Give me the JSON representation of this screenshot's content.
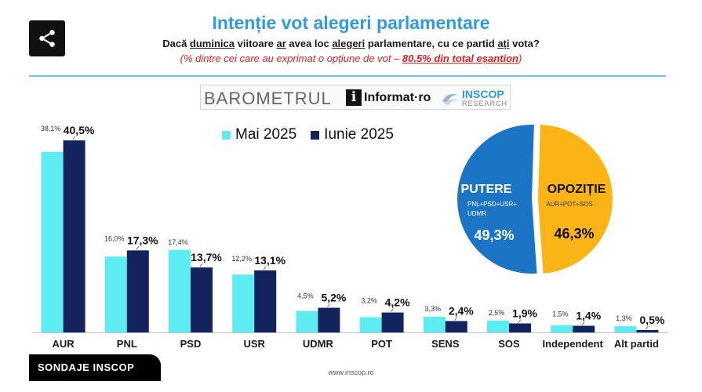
{
  "header": {
    "title": "Intenție vot alegeri parlamentare",
    "question_parts": [
      {
        "text": "Dacă ",
        "u": false
      },
      {
        "text": "duminica",
        "u": true
      },
      {
        "text": " viitoare ",
        "u": false
      },
      {
        "text": "ar",
        "u": true
      },
      {
        "text": " avea loc ",
        "u": false
      },
      {
        "text": "alegeri",
        "u": true
      },
      {
        "text": " parlamentare, cu ce partid ",
        "u": false
      },
      {
        "text": "ați",
        "u": true
      },
      {
        "text": " vota?",
        "u": false
      }
    ],
    "note_prefix": "(% dintre cei care au exprimat o opțiune de vot – ",
    "note_highlight": "80.5% din total eșantion",
    "note_suffix": ")"
  },
  "logos": {
    "barometru": "BAROMETRUL",
    "informat_i": "i",
    "informat": "Informat·ro",
    "inscop": "INSCOP",
    "research": "RESEARCH"
  },
  "legend": [
    {
      "label": "Mai 2025",
      "color": "#5cecf2"
    },
    {
      "label": "Iunie 2025",
      "color": "#13235e"
    }
  ],
  "colors": {
    "mai": "#5cecf2",
    "iunie": "#13235e",
    "putere": "#1b74c4",
    "opozitie": "#fbb416",
    "accent_blue": "#2f9ae0",
    "note_red": "#e02020"
  },
  "chart_data": [
    {
      "type": "bar",
      "categories": [
        "AUR",
        "PNL",
        "PSD",
        "USR",
        "UDMR",
        "POT",
        "SENS",
        "SOS",
        "Independent",
        "Alt partid"
      ],
      "series": [
        {
          "name": "Mai 2025",
          "values": [
            38.1,
            16.0,
            17.4,
            12.2,
            4.5,
            3.2,
            3.3,
            2.5,
            1.5,
            1.3
          ],
          "labels": [
            "38,1%",
            "16,0%",
            "17,4%",
            "12,2%",
            "4,5%",
            "3,2%",
            "3,3%",
            "2,5%",
            "1,5%",
            "1,3%"
          ]
        },
        {
          "name": "Iunie 2025",
          "values": [
            40.5,
            17.3,
            13.7,
            13.1,
            5.2,
            4.2,
            2.4,
            1.9,
            1.4,
            0.5
          ],
          "labels": [
            "40,5%",
            "17,3%",
            "13,7%",
            "13,1%",
            "5,2%",
            "4,2%",
            "2,4%",
            "1,9%",
            "1,4%",
            "0,5%"
          ]
        }
      ],
      "ylim": [
        0,
        42
      ],
      "legend_position": "top",
      "grid": false
    },
    {
      "type": "pie",
      "slices": [
        {
          "label": "PUTERE",
          "sub": "PNL+PSD+USR+UDMR",
          "sub_lines": [
            "PNL+PSD+USR+",
            "UDMR"
          ],
          "value": 49.3,
          "value_label": "49,3%",
          "color": "#1b74c4"
        },
        {
          "label": "OPOZIȚIE",
          "sub": "AUR+POT+SOS",
          "sub_lines": [
            "AUR+POT+SOS"
          ],
          "value": 46.3,
          "value_label": "46,3%",
          "color": "#fbb416"
        }
      ]
    }
  ],
  "footer": {
    "badge": "SONDAJE INSCOP",
    "url": "www.inscop.ro"
  }
}
